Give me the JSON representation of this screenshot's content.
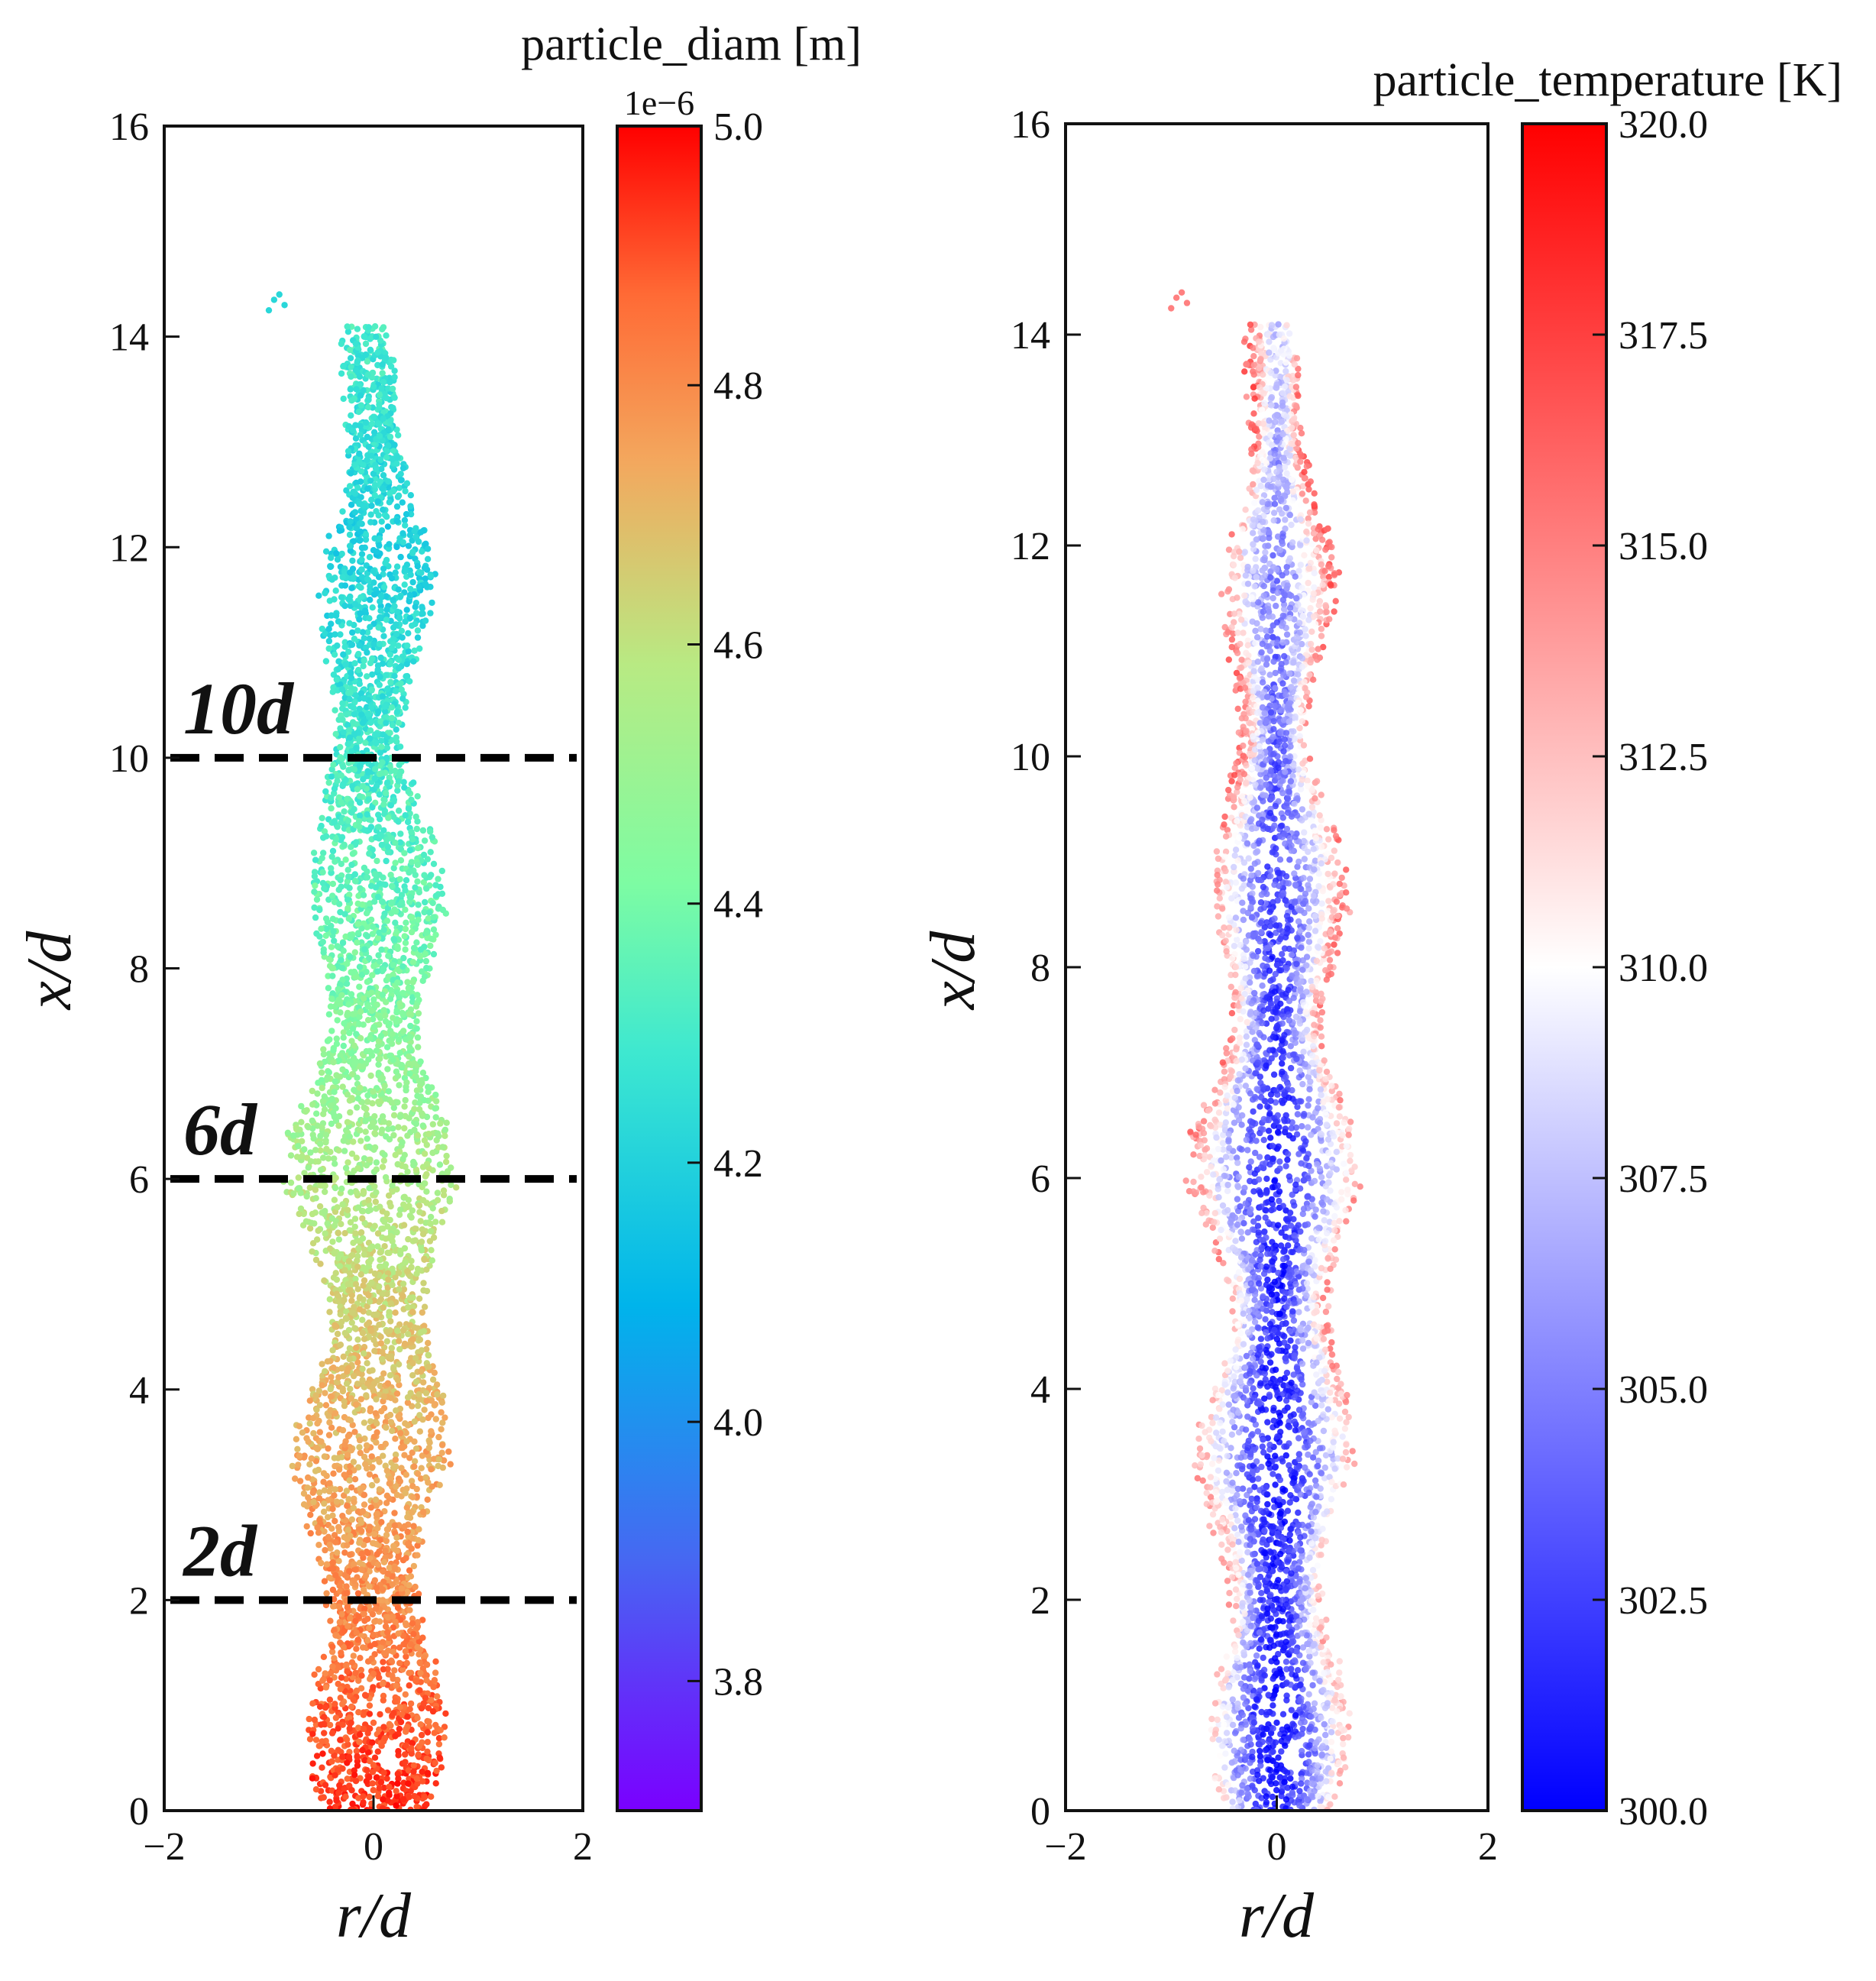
{
  "chart_data": [
    {
      "type": "scatter",
      "xlabel": "r/d",
      "ylabel": "x/d",
      "xlim": [
        -2,
        2
      ],
      "ylim": [
        0,
        16
      ],
      "xticks": [
        "−2",
        "0",
        "2"
      ],
      "yticks": [
        "0",
        "2",
        "4",
        "6",
        "8",
        "10",
        "12",
        "14",
        "16"
      ],
      "colorbar": {
        "title": "particle_diam [m]",
        "offset_text": "1e−6",
        "range": [
          3.7,
          5.0
        ],
        "ticks": [
          "5.0",
          "4.8",
          "4.6",
          "4.4",
          "4.2",
          "4.0",
          "3.8"
        ],
        "tick_values": [
          5.0,
          4.8,
          4.6,
          4.4,
          4.2,
          4.0,
          3.8
        ],
        "colormap": "rainbow"
      },
      "reference_lines": [
        {
          "y": 10,
          "label": "10d"
        },
        {
          "y": 6,
          "label": "6d"
        },
        {
          "y": 2,
          "label": "2d"
        }
      ],
      "jet_profile": [
        {
          "x_d": 0,
          "half_width": 0.55,
          "value": 4.95
        },
        {
          "x_d": 2,
          "half_width": 0.6,
          "value": 4.8
        },
        {
          "x_d": 4,
          "half_width": 0.65,
          "value": 4.7
        },
        {
          "x_d": 6,
          "half_width": 0.7,
          "value": 4.55
        },
        {
          "x_d": 8,
          "half_width": 0.6,
          "value": 4.4
        },
        {
          "x_d": 10,
          "half_width": 0.45,
          "value": 4.3
        },
        {
          "x_d": 12,
          "half_width": 0.45,
          "value": 4.2
        },
        {
          "x_d": 14,
          "half_width": 0.2,
          "value": 4.3
        }
      ]
    },
    {
      "type": "scatter",
      "xlabel": "r/d",
      "ylabel": "x/d",
      "xlim": [
        -2,
        2
      ],
      "ylim": [
        0,
        16
      ],
      "xticks": [
        "−2",
        "0",
        "2"
      ],
      "yticks": [
        "0",
        "2",
        "4",
        "6",
        "8",
        "10",
        "12",
        "14",
        "16"
      ],
      "colorbar": {
        "title": "particle_temperature [K]",
        "range": [
          300.0,
          320.0
        ],
        "ticks": [
          "320.0",
          "317.5",
          "315.0",
          "312.5",
          "310.0",
          "307.5",
          "305.0",
          "302.5",
          "300.0"
        ],
        "tick_values": [
          320.0,
          317.5,
          315.0,
          312.5,
          310.0,
          307.5,
          305.0,
          302.5,
          300.0
        ],
        "colormap": "bwr"
      },
      "jet_profile": [
        {
          "x_d": 0,
          "half_width": 0.55,
          "core_value": 300.5,
          "edge_value": 312.5
        },
        {
          "x_d": 4,
          "half_width": 0.65,
          "core_value": 301,
          "edge_value": 314
        },
        {
          "x_d": 8,
          "half_width": 0.6,
          "core_value": 302,
          "edge_value": 315
        },
        {
          "x_d": 12,
          "half_width": 0.45,
          "core_value": 305,
          "edge_value": 316
        },
        {
          "x_d": 14,
          "half_width": 0.2,
          "core_value": 308,
          "edge_value": 316
        }
      ]
    }
  ]
}
